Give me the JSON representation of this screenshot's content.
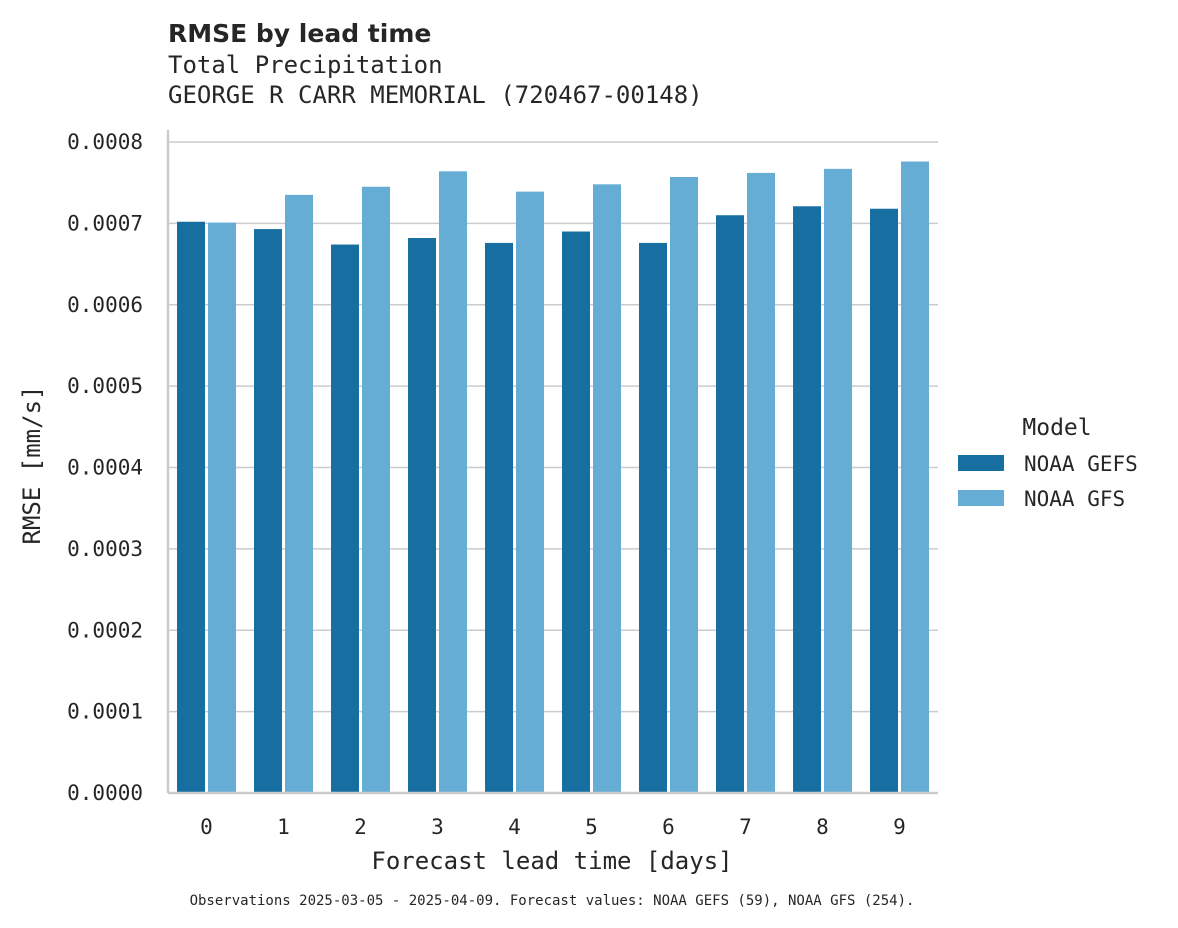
{
  "chart_data": {
    "type": "bar",
    "title": "RMSE by lead time",
    "subtitle_lines": [
      "Total Precipitation",
      "GEORGE R CARR MEMORIAL (720467-00148)"
    ],
    "xlabel": "Forecast lead time [days]",
    "ylabel": "RMSE [mm/s]",
    "categories": [
      "0",
      "1",
      "2",
      "3",
      "4",
      "5",
      "6",
      "7",
      "8",
      "9"
    ],
    "ylim": [
      0,
      0.0008
    ],
    "yticks": [
      "0.0000",
      "0.0001",
      "0.0002",
      "0.0003",
      "0.0004",
      "0.0005",
      "0.0006",
      "0.0007",
      "0.0008"
    ],
    "grid": "horizontal",
    "legend": {
      "title": "Model",
      "position": "right"
    },
    "series": [
      {
        "name": "NOAA GEFS",
        "color": "#176fa1",
        "values": [
          0.000702,
          0.000693,
          0.000674,
          0.000682,
          0.000676,
          0.00069,
          0.000676,
          0.00071,
          0.000721,
          0.000718
        ]
      },
      {
        "name": "NOAA GFS",
        "color": "#66add6",
        "values": [
          0.000701,
          0.000735,
          0.000745,
          0.000764,
          0.000739,
          0.000748,
          0.000757,
          0.000762,
          0.000767,
          0.000776
        ]
      }
    ],
    "footnote": "Observations 2025-03-05 - 2025-04-09. Forecast values: NOAA GEFS (59), NOAA GFS (254)."
  }
}
